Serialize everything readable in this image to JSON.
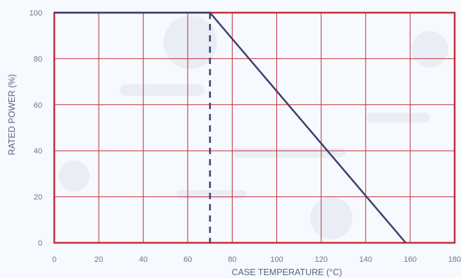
{
  "chart_data": {
    "type": "line",
    "title": "",
    "xlabel": "CASE TEMPERATURE (°C)",
    "ylabel": "RATED POWER (%)",
    "xlim": [
      0,
      180
    ],
    "ylim": [
      0,
      100
    ],
    "xticks": [
      "0",
      "20",
      "40",
      "60",
      "80",
      "100",
      "120",
      "140",
      "160",
      "180"
    ],
    "yticks": [
      "0",
      "20",
      "40",
      "60",
      "80",
      "100"
    ],
    "grid": true,
    "series": [
      {
        "x": [
          0,
          70,
          158
        ],
        "y": [
          100,
          100,
          0
        ],
        "color": "#3d3e6e"
      }
    ],
    "reference_lines": [
      {
        "orientation": "vertical",
        "x": 70,
        "style": "dashed",
        "color": "#3d3e6e"
      }
    ],
    "colors": {
      "grid": "#c0303a",
      "frame": "#c0303a",
      "line": "#3d3e6e",
      "background": "#f6f9fd"
    }
  }
}
